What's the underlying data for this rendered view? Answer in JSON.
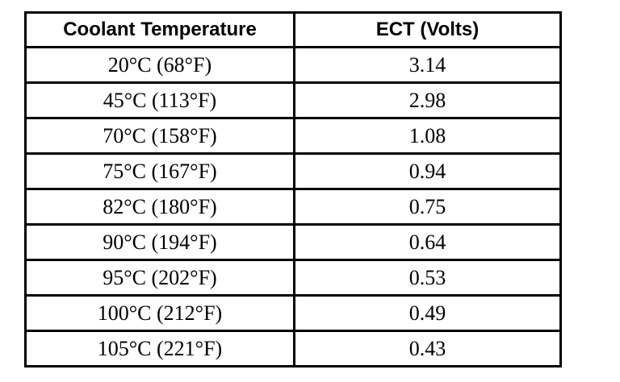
{
  "table": {
    "headers": {
      "temperature": "Coolant Temperature",
      "volts": "ECT (Volts)"
    },
    "rows": [
      {
        "temperature": "20°C (68°F)",
        "volts": "3.14"
      },
      {
        "temperature": "45°C (113°F)",
        "volts": "2.98"
      },
      {
        "temperature": "70°C (158°F)",
        "volts": "1.08"
      },
      {
        "temperature": "75°C (167°F)",
        "volts": "0.94"
      },
      {
        "temperature": "82°C (180°F)",
        "volts": "0.75"
      },
      {
        "temperature": "90°C (194°F)",
        "volts": "0.64"
      },
      {
        "temperature": "95°C (202°F)",
        "volts": "0.53"
      },
      {
        "temperature": "100°C (212°F)",
        "volts": "0.49"
      },
      {
        "temperature": "105°C (221°F)",
        "volts": "0.43"
      }
    ],
    "border_color": "#000000",
    "background_color": "#ffffff"
  }
}
